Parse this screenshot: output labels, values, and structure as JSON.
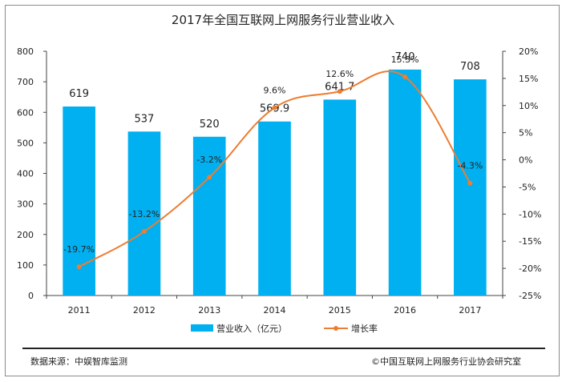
{
  "chart_data": {
    "type": "bar",
    "title": "2017年全国互联网上网服务行业营业收入",
    "categories": [
      "2011",
      "2012",
      "2013",
      "2014",
      "2015",
      "2016",
      "2017"
    ],
    "series": [
      {
        "name": "营业收入（亿元）",
        "type": "bar",
        "axis": "left",
        "color": "#00B0F0",
        "values": [
          619,
          537,
          520,
          569.9,
          641.7,
          740,
          708
        ],
        "labels": [
          "619",
          "537",
          "520",
          "569.9",
          "641.7",
          "740",
          "708"
        ]
      },
      {
        "name": "增长率",
        "type": "line",
        "axis": "right",
        "color": "#ED7D31",
        "values": [
          -19.7,
          -13.2,
          -3.2,
          9.6,
          12.6,
          15.3,
          -4.3
        ],
        "labels": [
          "-19.7%",
          "-13.2%",
          "-3.2%",
          "9.6%",
          "12.6%",
          "15.3%",
          "-4.3%"
        ]
      }
    ],
    "y_left": {
      "min": 0,
      "max": 800,
      "ticks": [
        "0",
        "100",
        "200",
        "300",
        "400",
        "500",
        "600",
        "700",
        "800"
      ]
    },
    "y_right": {
      "min": -25,
      "max": 20,
      "ticks": [
        "-25%",
        "-20%",
        "-15%",
        "-10%",
        "-5%",
        "0%",
        "5%",
        "10%",
        "15%",
        "20%"
      ]
    },
    "grid": false,
    "legend_position": "bottom"
  },
  "footer": {
    "source": "数据来源：中娱智库监测",
    "copyright": "©中国互联网上网服务行业协会研究室"
  }
}
